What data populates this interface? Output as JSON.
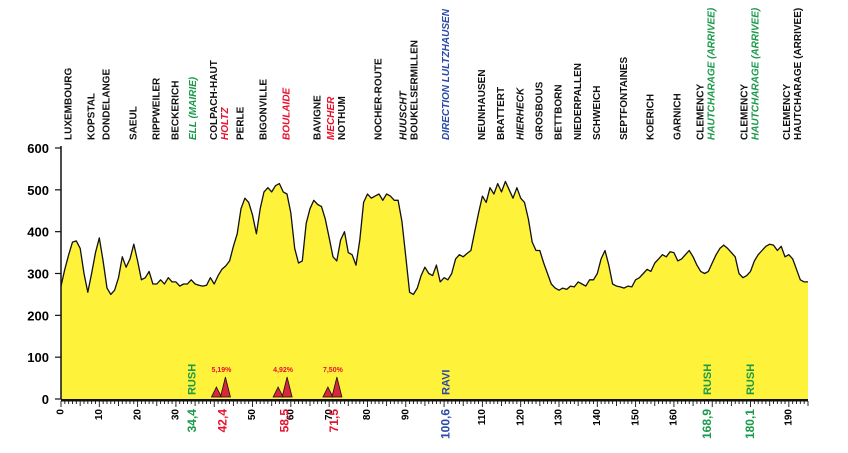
{
  "colors": {
    "fill": "#fff23a",
    "line": "#111111",
    "black": "#111111",
    "green": "#1a9a4a",
    "red": "#e8112d",
    "blue": "#2b4aa8",
    "climb_fill": "#d7263d"
  },
  "chart_data": {
    "type": "area",
    "title": "",
    "xlabel": "",
    "ylabel": "",
    "xlim": [
      0,
      195
    ],
    "ylim": [
      0,
      600
    ],
    "grid": false,
    "y_ticks": [
      0,
      100,
      200,
      300,
      400,
      500,
      600
    ],
    "y_tick_labels": [
      "0",
      "100",
      "200",
      "300",
      "400",
      "500",
      "600"
    ],
    "x_ticks": [
      0,
      10,
      20,
      30,
      50,
      60,
      70,
      80,
      90,
      110,
      120,
      130,
      140,
      150,
      160,
      190
    ],
    "x_tick_labels": [
      "0",
      "10",
      "20",
      "30",
      "50",
      "60",
      "70",
      "80",
      "90",
      "110",
      "120",
      "130",
      "140",
      "150",
      "160",
      "190"
    ],
    "km_markers": [
      {
        "km": 34.4,
        "label": "34,4",
        "color": "#1a9a4a"
      },
      {
        "km": 42.4,
        "label": "42,4",
        "color": "#e8112d"
      },
      {
        "km": 58.5,
        "label": "58,5",
        "color": "#e8112d"
      },
      {
        "km": 71.5,
        "label": "71,5",
        "color": "#e8112d"
      },
      {
        "km": 100.6,
        "label": "100,6",
        "color": "#2b4aa8"
      },
      {
        "km": 168.9,
        "label": "168,9",
        "color": "#1a9a4a"
      },
      {
        "km": 180.1,
        "label": "180,1",
        "color": "#1a9a4a"
      }
    ],
    "markers": [
      {
        "km": 34.4,
        "label": "RUSH",
        "color": "#1a9a4a"
      },
      {
        "km": 100.6,
        "label": "RAVI",
        "color": "#2b4aa8"
      },
      {
        "km": 168.9,
        "label": "RUSH",
        "color": "#1a9a4a"
      },
      {
        "km": 180.1,
        "label": "RUSH",
        "color": "#1a9a4a"
      }
    ],
    "climbs": [
      {
        "km": 42.4,
        "label": "5,19%"
      },
      {
        "km": 58.5,
        "label": "4,92%"
      },
      {
        "km": 71.5,
        "label": "7,50%"
      }
    ],
    "places": [
      {
        "km": 2,
        "lines": [
          "LUXEMBOURG"
        ],
        "colors": [
          "#111111"
        ],
        "italic": [
          false
        ]
      },
      {
        "km": 8,
        "lines": [
          "KOPSTAL"
        ],
        "colors": [
          "#111111"
        ],
        "italic": [
          false
        ]
      },
      {
        "km": 12,
        "lines": [
          "DONDELANGE"
        ],
        "colors": [
          "#111111"
        ],
        "italic": [
          false
        ]
      },
      {
        "km": 19,
        "lines": [
          "SAEUL"
        ],
        "colors": [
          "#111111"
        ],
        "italic": [
          false
        ]
      },
      {
        "km": 25,
        "lines": [
          "RIPPWEILER"
        ],
        "colors": [
          "#111111"
        ],
        "italic": [
          false
        ]
      },
      {
        "km": 30,
        "lines": [
          "BECKERICH"
        ],
        "colors": [
          "#111111"
        ],
        "italic": [
          false
        ]
      },
      {
        "km": 34.5,
        "lines": [
          "ELL (MAIRIE)"
        ],
        "colors": [
          "#1a9a4a"
        ],
        "italic": [
          true
        ]
      },
      {
        "km": 41.5,
        "lines": [
          "COLPACH-HAUT",
          "HOLTZ"
        ],
        "colors": [
          "#111111",
          "#e8112d"
        ],
        "italic": [
          false,
          true
        ]
      },
      {
        "km": 47,
        "lines": [
          "PERLE"
        ],
        "colors": [
          "#111111"
        ],
        "italic": [
          false
        ]
      },
      {
        "km": 53,
        "lines": [
          "BIGONVILLE"
        ],
        "colors": [
          "#111111"
        ],
        "italic": [
          false
        ]
      },
      {
        "km": 59,
        "lines": [
          "BOULAIDE"
        ],
        "colors": [
          "#e8112d"
        ],
        "italic": [
          true
        ]
      },
      {
        "km": 67,
        "lines": [
          "BAVIGNE"
        ],
        "colors": [
          "#111111"
        ],
        "italic": [
          false
        ]
      },
      {
        "km": 72,
        "lines": [
          "MECHER",
          "NOTHUM"
        ],
        "colors": [
          "#e8112d",
          "#111111"
        ],
        "italic": [
          true,
          false
        ]
      },
      {
        "km": 83,
        "lines": [
          "NOCHER-ROUTE"
        ],
        "colors": [
          "#111111"
        ],
        "italic": [
          false
        ]
      },
      {
        "km": 91,
        "lines": [
          "HUUSCHT",
          "BOUKELSERMILLEN"
        ],
        "colors": [
          "#111111",
          "#111111"
        ],
        "italic": [
          true,
          false
        ]
      },
      {
        "km": 100.6,
        "lines": [
          "DIRECTION LULTZHAUSEN"
        ],
        "colors": [
          "#2b4aa8"
        ],
        "italic": [
          true
        ]
      },
      {
        "km": 110,
        "lines": [
          "NEUNHAUSEN"
        ],
        "colors": [
          "#111111"
        ],
        "italic": [
          false
        ]
      },
      {
        "km": 115,
        "lines": [
          "BRATTERT"
        ],
        "colors": [
          "#111111"
        ],
        "italic": [
          false
        ]
      },
      {
        "km": 120,
        "lines": [
          "HIERHECK"
        ],
        "colors": [
          "#111111"
        ],
        "italic": [
          true
        ]
      },
      {
        "km": 125,
        "lines": [
          "GROSBOUS"
        ],
        "colors": [
          "#111111"
        ],
        "italic": [
          false
        ]
      },
      {
        "km": 130,
        "lines": [
          "BETTBORN"
        ],
        "colors": [
          "#111111"
        ],
        "italic": [
          false
        ]
      },
      {
        "km": 135,
        "lines": [
          "NIEDERPALLEN"
        ],
        "colors": [
          "#111111"
        ],
        "italic": [
          false
        ]
      },
      {
        "km": 140,
        "lines": [
          "SCHWEICH"
        ],
        "colors": [
          "#111111"
        ],
        "italic": [
          false
        ]
      },
      {
        "km": 147,
        "lines": [
          "SEPTFONTAINES"
        ],
        "colors": [
          "#111111"
        ],
        "italic": [
          false
        ]
      },
      {
        "km": 154,
        "lines": [
          "KOERICH"
        ],
        "colors": [
          "#111111"
        ],
        "italic": [
          false
        ]
      },
      {
        "km": 161,
        "lines": [
          "GARNICH"
        ],
        "colors": [
          "#111111"
        ],
        "italic": [
          false
        ]
      },
      {
        "km": 168.5,
        "lines": [
          "CLEMENCY",
          "HAUTCHARAGE (ARRIVEE)"
        ],
        "colors": [
          "#111111",
          "#1a9a4a"
        ],
        "italic": [
          false,
          true
        ]
      },
      {
        "km": 180,
        "lines": [
          "CLEMENCY",
          "HAUTCHARAGE (ARRIVEE)"
        ],
        "colors": [
          "#111111",
          "#1a9a4a"
        ],
        "italic": [
          false,
          true
        ]
      },
      {
        "km": 191,
        "lines": [
          "CLEMENCY",
          "HAUTCHARAGE (ARRIVEE)"
        ],
        "colors": [
          "#111111",
          "#111111"
        ],
        "italic": [
          false,
          false
        ]
      }
    ],
    "profile": [
      [
        0,
        270
      ],
      [
        1,
        310
      ],
      [
        2,
        345
      ],
      [
        3,
        375
      ],
      [
        4,
        378
      ],
      [
        5,
        360
      ],
      [
        6,
        300
      ],
      [
        7,
        255
      ],
      [
        8,
        300
      ],
      [
        9,
        350
      ],
      [
        10,
        385
      ],
      [
        11,
        330
      ],
      [
        12,
        265
      ],
      [
        13,
        250
      ],
      [
        14,
        260
      ],
      [
        15,
        290
      ],
      [
        16,
        340
      ],
      [
        17,
        315
      ],
      [
        18,
        335
      ],
      [
        19,
        370
      ],
      [
        20,
        330
      ],
      [
        21,
        285
      ],
      [
        22,
        290
      ],
      [
        23,
        305
      ],
      [
        24,
        275
      ],
      [
        25,
        275
      ],
      [
        26,
        285
      ],
      [
        27,
        275
      ],
      [
        28,
        290
      ],
      [
        29,
        280
      ],
      [
        30,
        280
      ],
      [
        31,
        270
      ],
      [
        32,
        275
      ],
      [
        33,
        275
      ],
      [
        34,
        285
      ],
      [
        35,
        275
      ],
      [
        36,
        272
      ],
      [
        37,
        270
      ],
      [
        38,
        272
      ],
      [
        39,
        290
      ],
      [
        40,
        275
      ],
      [
        41,
        295
      ],
      [
        42,
        310
      ],
      [
        43,
        318
      ],
      [
        44,
        330
      ],
      [
        45,
        365
      ],
      [
        46,
        395
      ],
      [
        47,
        455
      ],
      [
        48,
        480
      ],
      [
        49,
        470
      ],
      [
        50,
        440
      ],
      [
        51,
        395
      ],
      [
        52,
        455
      ],
      [
        53,
        495
      ],
      [
        54,
        505
      ],
      [
        55,
        495
      ],
      [
        56,
        510
      ],
      [
        57,
        515
      ],
      [
        58,
        495
      ],
      [
        59,
        490
      ],
      [
        60,
        445
      ],
      [
        61,
        360
      ],
      [
        62,
        325
      ],
      [
        63,
        330
      ],
      [
        64,
        420
      ],
      [
        65,
        455
      ],
      [
        66,
        475
      ],
      [
        67,
        465
      ],
      [
        68,
        460
      ],
      [
        69,
        430
      ],
      [
        70,
        385
      ],
      [
        71,
        340
      ],
      [
        72,
        330
      ],
      [
        73,
        380
      ],
      [
        74,
        400
      ],
      [
        75,
        350
      ],
      [
        76,
        345
      ],
      [
        77,
        320
      ],
      [
        78,
        380
      ],
      [
        79,
        470
      ],
      [
        80,
        490
      ],
      [
        81,
        480
      ],
      [
        82,
        485
      ],
      [
        83,
        490
      ],
      [
        84,
        475
      ],
      [
        85,
        490
      ],
      [
        86,
        485
      ],
      [
        87,
        475
      ],
      [
        88,
        475
      ],
      [
        89,
        425
      ],
      [
        90,
        340
      ],
      [
        91,
        255
      ],
      [
        92,
        250
      ],
      [
        93,
        265
      ],
      [
        94,
        295
      ],
      [
        95,
        315
      ],
      [
        96,
        300
      ],
      [
        97,
        295
      ],
      [
        98,
        320
      ],
      [
        99,
        280
      ],
      [
        100,
        290
      ],
      [
        101,
        285
      ],
      [
        102,
        300
      ],
      [
        103,
        335
      ],
      [
        104,
        345
      ],
      [
        105,
        340
      ],
      [
        106,
        348
      ],
      [
        107,
        355
      ],
      [
        108,
        400
      ],
      [
        109,
        445
      ],
      [
        110,
        485
      ],
      [
        111,
        470
      ],
      [
        112,
        505
      ],
      [
        113,
        490
      ],
      [
        114,
        515
      ],
      [
        115,
        495
      ],
      [
        116,
        520
      ],
      [
        117,
        500
      ],
      [
        118,
        480
      ],
      [
        119,
        505
      ],
      [
        120,
        480
      ],
      [
        121,
        470
      ],
      [
        122,
        430
      ],
      [
        123,
        375
      ],
      [
        124,
        355
      ],
      [
        125,
        355
      ],
      [
        126,
        325
      ],
      [
        127,
        300
      ],
      [
        128,
        275
      ],
      [
        129,
        265
      ],
      [
        130,
        260
      ],
      [
        131,
        265
      ],
      [
        132,
        262
      ],
      [
        133,
        270
      ],
      [
        134,
        268
      ],
      [
        135,
        280
      ],
      [
        136,
        275
      ],
      [
        137,
        270
      ],
      [
        138,
        285
      ],
      [
        139,
        285
      ],
      [
        140,
        300
      ],
      [
        141,
        335
      ],
      [
        142,
        355
      ],
      [
        143,
        320
      ],
      [
        144,
        275
      ],
      [
        145,
        270
      ],
      [
        146,
        268
      ],
      [
        147,
        265
      ],
      [
        148,
        270
      ],
      [
        149,
        268
      ],
      [
        150,
        285
      ],
      [
        151,
        290
      ],
      [
        152,
        300
      ],
      [
        153,
        310
      ],
      [
        154,
        305
      ],
      [
        155,
        325
      ],
      [
        156,
        335
      ],
      [
        157,
        345
      ],
      [
        158,
        340
      ],
      [
        159,
        352
      ],
      [
        160,
        350
      ],
      [
        161,
        330
      ],
      [
        162,
        335
      ],
      [
        163,
        345
      ],
      [
        164,
        355
      ],
      [
        165,
        340
      ],
      [
        166,
        320
      ],
      [
        167,
        305
      ],
      [
        168,
        300
      ],
      [
        169,
        305
      ],
      [
        170,
        325
      ],
      [
        171,
        345
      ],
      [
        172,
        360
      ],
      [
        173,
        368
      ],
      [
        174,
        360
      ],
      [
        175,
        350
      ],
      [
        176,
        340
      ],
      [
        177,
        300
      ],
      [
        178,
        290
      ],
      [
        179,
        295
      ],
      [
        180,
        305
      ],
      [
        181,
        330
      ],
      [
        182,
        345
      ],
      [
        183,
        355
      ],
      [
        184,
        365
      ],
      [
        185,
        370
      ],
      [
        186,
        368
      ],
      [
        187,
        355
      ],
      [
        188,
        365
      ],
      [
        189,
        340
      ],
      [
        190,
        345
      ],
      [
        191,
        335
      ],
      [
        192,
        310
      ],
      [
        193,
        285
      ],
      [
        194,
        280
      ],
      [
        195,
        280
      ]
    ]
  }
}
